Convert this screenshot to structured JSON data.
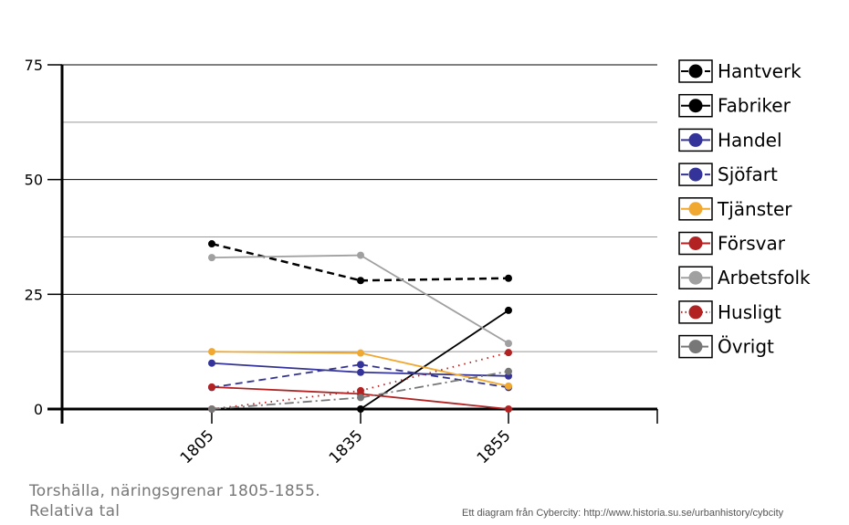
{
  "chart_data": {
    "type": "line",
    "categories": [
      "1805",
      "1835",
      "1855"
    ],
    "ylim": [
      0,
      75
    ],
    "yticks": [
      "0",
      "25",
      "50",
      "75"
    ],
    "grid": true,
    "legend_position": "right",
    "series": [
      {
        "name": "Hantverk",
        "values": [
          36,
          28,
          28.5
        ],
        "color": "#000000",
        "dash": "dashed"
      },
      {
        "name": "Fabriker",
        "values": [
          null,
          0,
          21.5
        ],
        "color": "#000000",
        "dash": "solid"
      },
      {
        "name": "Handel",
        "values": [
          10,
          8,
          7.2
        ],
        "color": "#333399",
        "dash": "solid"
      },
      {
        "name": "Sjöfart",
        "values": [
          4.7,
          9.7,
          4.7
        ],
        "color": "#333399",
        "dash": "dashed"
      },
      {
        "name": "Tjänster",
        "values": [
          12.5,
          12.2,
          5
        ],
        "color": "#f0a830",
        "dash": "solid"
      },
      {
        "name": "Försvar",
        "values": [
          4.8,
          3.3,
          0
        ],
        "color": "#b22222",
        "dash": "solid"
      },
      {
        "name": "Arbetsfolk",
        "values": [
          33,
          33.5,
          14.3
        ],
        "color": "#a0a0a0",
        "dash": "solid"
      },
      {
        "name": "Husligt",
        "values": [
          0,
          4,
          12.3
        ],
        "color": "#b22222",
        "dash": "dotted"
      },
      {
        "name": "Övrigt",
        "values": [
          0,
          2.5,
          8.2
        ],
        "color": "#777777",
        "dash": "dashdot"
      }
    ]
  },
  "caption": {
    "line1": "Torshälla, näringsgrenar 1805-1855.",
    "line2": "Relativa tal"
  },
  "credit": "Ett diagram från Cybercity: http://www.historia.su.se/urbanhistory/cybcity"
}
